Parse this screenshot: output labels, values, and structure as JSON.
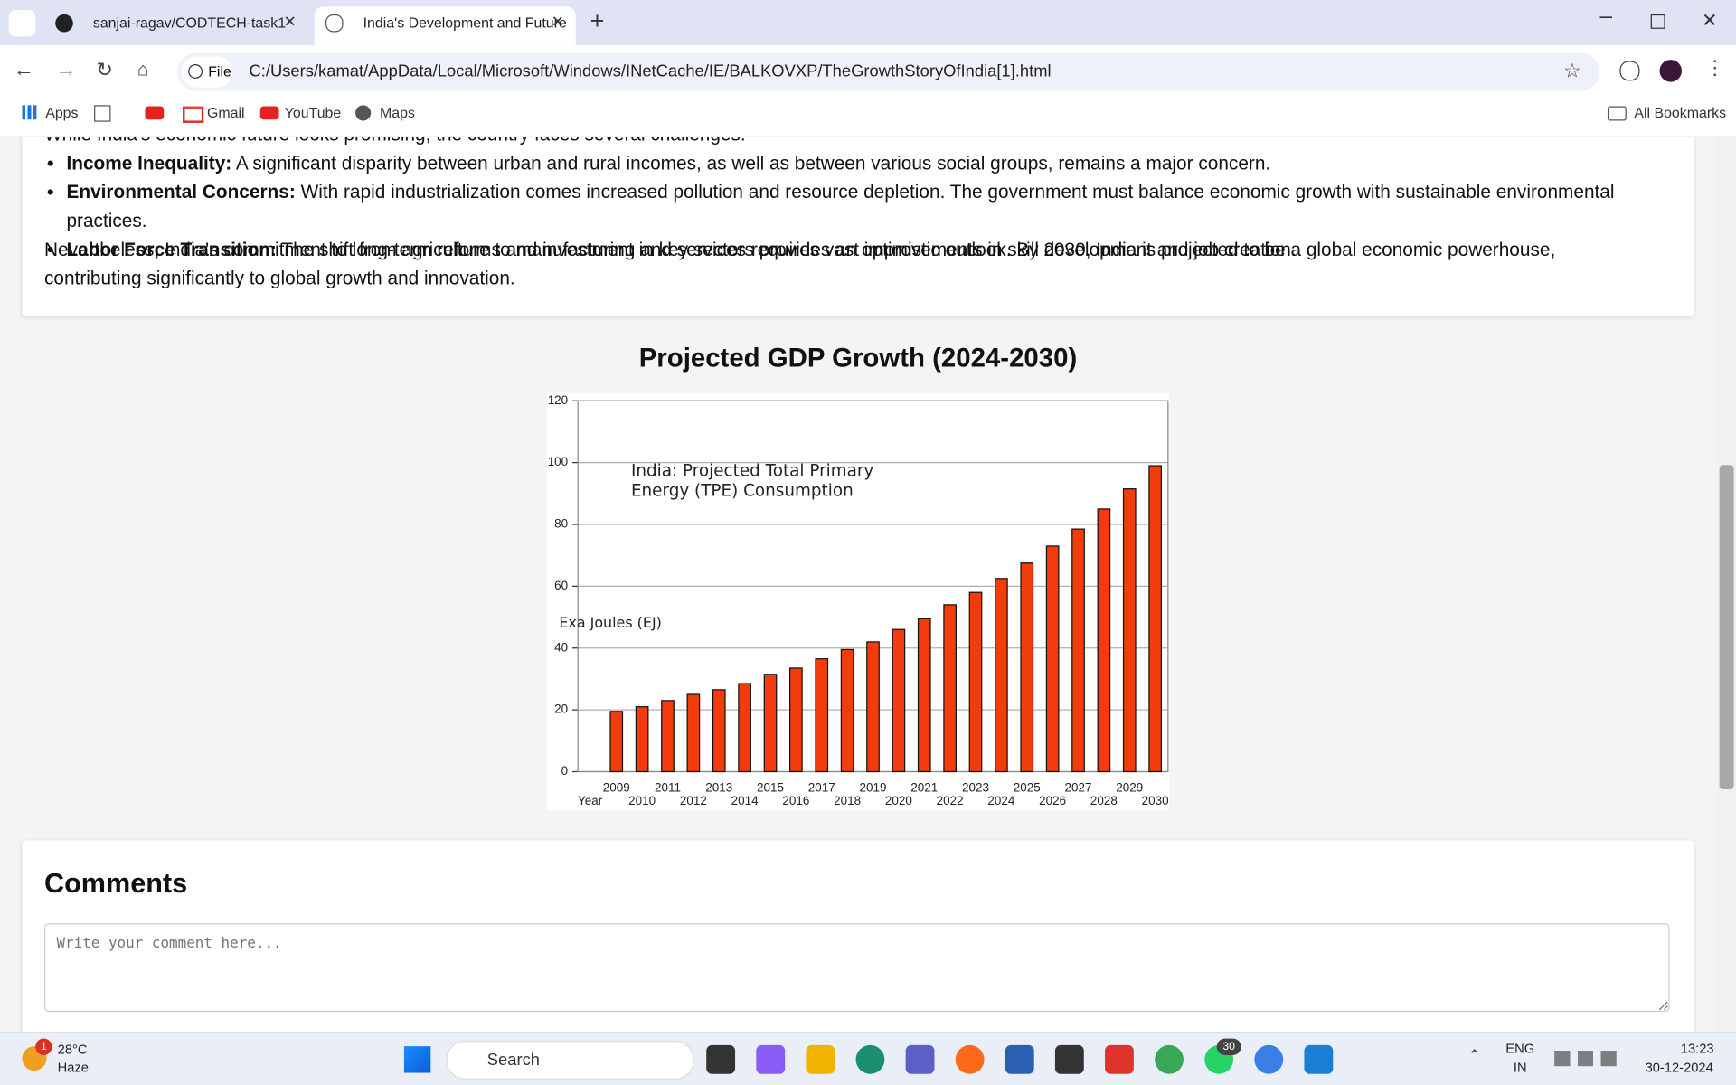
{
  "browser": {
    "tabs": [
      "sanjai-ragav/CODTECH-task1",
      "India's Development and Future"
    ],
    "file_label": "File",
    "address": "C:/Users/kamat/AppData/Local/Microsoft/Windows/INetCache/IE/BALKOVXP/TheGrowthStoryOfIndia[1].html",
    "bookmarks": [
      "Apps",
      "Gmail",
      "YouTube",
      "Maps"
    ],
    "all_bookmarks": "All Bookmarks"
  },
  "content": {
    "intro": "While India's economic future looks promising, the country faces several challenges.",
    "challenges": [
      {
        "term": "Income Inequality:",
        "text": "A significant disparity between urban and rural incomes, as well as between various social groups, remains a major concern."
      },
      {
        "term": "Environmental Concerns:",
        "text": "With rapid industrialization comes increased pollution and resource depletion. The government must balance economic growth with sustainable environmental practices."
      },
      {
        "term": "Labor Force Transition:",
        "text": "The shift from agriculture to manufacturing and services requires vast improvements in skill development and job creation."
      }
    ],
    "conclusion": "Nevertheless, India's commitment to long-term reforms and investment in key sectors provides an optimistic outlook. By 2030, India is projected to be a global economic powerhouse, contributing significantly to global growth and innovation.",
    "chart_heading": "Projected GDP Growth (2024-2030)",
    "comments_heading": "Comments",
    "comment_placeholder": "Write your comment here..."
  },
  "chart_data": {
    "type": "bar",
    "title_lines": [
      "India: Projected Total Primary",
      "Energy (TPE) Consumption"
    ],
    "y_label": "Exa Joules (EJ)",
    "x_label": "Year",
    "categories": [
      "2009",
      "2010",
      "2011",
      "2012",
      "2013",
      "2014",
      "2015",
      "2016",
      "2017",
      "2018",
      "2019",
      "2020",
      "2021",
      "2022",
      "2023",
      "2024",
      "2025",
      "2026",
      "2027",
      "2028",
      "2029",
      "2030"
    ],
    "values": [
      19.5,
      21,
      23,
      25,
      26.5,
      28.5,
      31.5,
      33.5,
      36.5,
      39.5,
      42,
      46,
      49.5,
      54,
      58,
      62.5,
      67.5,
      73,
      78.5,
      85,
      91.5,
      99
    ],
    "color": "#f23c0c",
    "ylim": [
      0,
      120
    ],
    "yticks": [
      0,
      20,
      40,
      60,
      80,
      100,
      120
    ],
    "grid": true
  },
  "taskbar": {
    "weather_badge": "1",
    "temperature": "28°C",
    "condition": "Haze",
    "search": "Search",
    "whatsapp_badge": "30",
    "lang": "ENG",
    "region": "IN",
    "time": "13:23",
    "date": "30-12-2024"
  }
}
